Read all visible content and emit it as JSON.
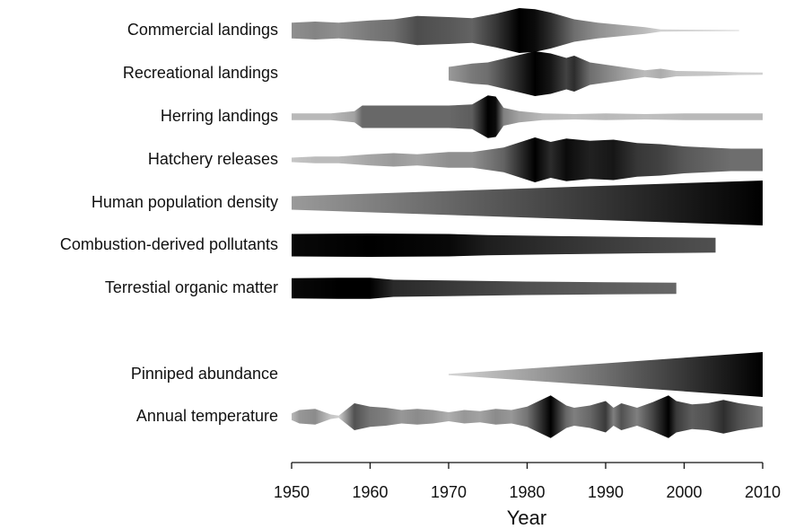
{
  "chart_data": {
    "type": "spindle",
    "xlabel": "Year",
    "xlim": [
      1950,
      2010
    ],
    "xticks": [
      1950,
      1960,
      1970,
      1980,
      1990,
      2000,
      2010
    ],
    "color_low": "#dcdcdc",
    "color_high": "#000000",
    "series": [
      {
        "name": "Commercial landings",
        "x": [
          1950,
          1953,
          1956,
          1960,
          1963,
          1966,
          1970,
          1973,
          1976,
          1979,
          1981,
          1983,
          1986,
          1989,
          1992,
          1995,
          1997,
          2000,
          2004,
          2007
        ],
        "values": [
          0.35,
          0.4,
          0.35,
          0.45,
          0.5,
          0.65,
          0.6,
          0.55,
          0.75,
          1.0,
          0.95,
          0.8,
          0.5,
          0.35,
          0.25,
          0.15,
          0.05,
          0.04,
          0.03,
          0.02
        ]
      },
      {
        "name": "Recreational landings",
        "x": [
          1970,
          1973,
          1975,
          1978,
          1981,
          1983,
          1985,
          1986,
          1988,
          1990,
          1993,
          1995,
          1997,
          1999,
          2003,
          2007,
          2010
        ],
        "values": [
          0.3,
          0.45,
          0.5,
          0.75,
          1.0,
          0.9,
          0.7,
          0.8,
          0.5,
          0.4,
          0.25,
          0.15,
          0.22,
          0.12,
          0.1,
          0.06,
          0.05
        ]
      },
      {
        "name": "Herring landings",
        "x": [
          1950,
          1955,
          1958,
          1959,
          1965,
          1970,
          1973,
          1975,
          1976,
          1977,
          1979,
          1982,
          1986,
          1990,
          1995,
          2000,
          2005,
          2010
        ],
        "values": [
          0.15,
          0.15,
          0.25,
          0.5,
          0.5,
          0.5,
          0.55,
          0.95,
          0.9,
          0.4,
          0.25,
          0.15,
          0.12,
          0.15,
          0.12,
          0.15,
          0.15,
          0.15
        ]
      },
      {
        "name": "Hatchery releases",
        "x": [
          1950,
          1953,
          1956,
          1960,
          1963,
          1966,
          1970,
          1973,
          1977,
          1981,
          1983,
          1985,
          1988,
          1991,
          1994,
          1997,
          2000,
          2003,
          2006,
          2010
        ],
        "values": [
          0.1,
          0.15,
          0.15,
          0.25,
          0.3,
          0.25,
          0.35,
          0.35,
          0.55,
          1.0,
          0.8,
          0.95,
          0.85,
          0.9,
          0.75,
          0.7,
          0.6,
          0.55,
          0.5,
          0.5
        ]
      },
      {
        "name": "Human population density",
        "x": [
          1950,
          1980,
          2010
        ],
        "values": [
          0.3,
          0.65,
          1.0
        ]
      },
      {
        "name": "Combustion-derived pollutants",
        "x": [
          1950,
          1960,
          1970,
          1975,
          1985,
          1995,
          2004
        ],
        "values": [
          0.5,
          0.52,
          0.5,
          0.45,
          0.4,
          0.36,
          0.33
        ]
      },
      {
        "name": "Terrestial organic matter",
        "x": [
          1950,
          1956,
          1960,
          1963,
          1970,
          1980,
          1990,
          1999
        ],
        "values": [
          0.45,
          0.47,
          0.47,
          0.38,
          0.35,
          0.3,
          0.27,
          0.25
        ]
      },
      {
        "name": "Pinniped abundance",
        "x": [
          1970,
          1990,
          2010
        ],
        "values": [
          0.03,
          0.5,
          1.0
        ]
      },
      {
        "name": "Annual temperature",
        "x": [
          1950,
          1951,
          1953,
          1955,
          1956,
          1958,
          1960,
          1962,
          1964,
          1966,
          1968,
          1970,
          1972,
          1974,
          1976,
          1978,
          1980,
          1983,
          1985,
          1986,
          1988,
          1990,
          1991,
          1992,
          1994,
          1996,
          1998,
          1999,
          2001,
          2003,
          2005,
          2007,
          2009,
          2010
        ],
        "values": [
          0.15,
          0.3,
          0.35,
          0.1,
          0.05,
          0.6,
          0.45,
          0.4,
          0.3,
          0.35,
          0.3,
          0.2,
          0.3,
          0.25,
          0.35,
          0.3,
          0.45,
          0.95,
          0.5,
          0.4,
          0.5,
          0.7,
          0.4,
          0.6,
          0.4,
          0.65,
          0.95,
          0.7,
          0.55,
          0.6,
          0.75,
          0.6,
          0.5,
          0.45
        ]
      }
    ]
  }
}
